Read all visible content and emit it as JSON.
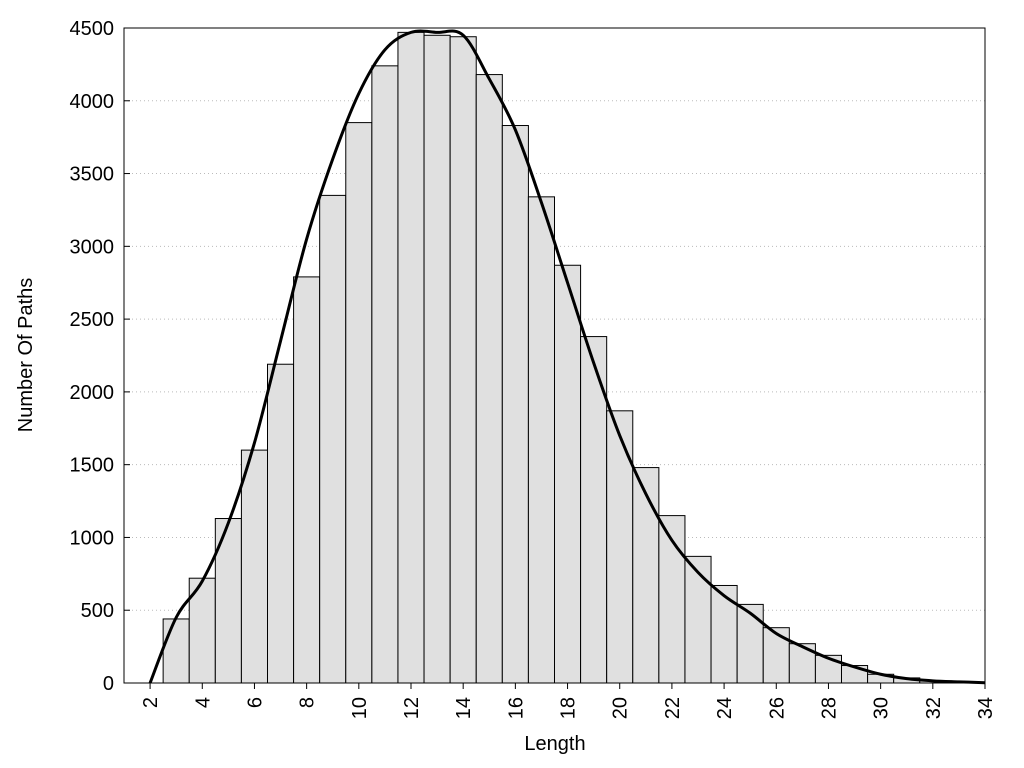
{
  "chart_data": {
    "type": "histogram",
    "x_label": "Length",
    "y_label": "Number Of Paths",
    "bins": [
      2.5,
      3.5,
      4.5,
      5.5,
      6.5,
      7.5,
      8.5,
      9.5,
      10.5,
      11.5,
      12.5,
      13.5,
      14.5,
      15.5,
      16.5,
      17.5,
      18.5,
      19.5,
      20.5,
      21.5,
      22.5,
      23.5,
      24.5,
      25.5,
      26.5,
      27.5,
      28.5,
      29.5,
      30.5,
      31.5,
      32.5,
      33.5
    ],
    "values": [
      440,
      720,
      1130,
      1600,
      2190,
      2790,
      3350,
      3850,
      4240,
      4470,
      4450,
      4440,
      4180,
      3830,
      3340,
      2870,
      2380,
      1870,
      1480,
      1150,
      870,
      670,
      540,
      380,
      270,
      190,
      120,
      60,
      35,
      15,
      7
    ],
    "color": "#e0e0e0",
    "curve": {
      "type": "line",
      "color": "#000000",
      "x": [
        2,
        3,
        4,
        5,
        6,
        7,
        8,
        9,
        10,
        11,
        12,
        13,
        14,
        15,
        16,
        17,
        18,
        19,
        20,
        21,
        22,
        23,
        24,
        25,
        26,
        27,
        28,
        29,
        30,
        31,
        32,
        33,
        34
      ],
      "values": [
        0,
        450,
        700,
        1100,
        1650,
        2350,
        3050,
        3600,
        4050,
        4350,
        4470,
        4470,
        4450,
        4150,
        3800,
        3300,
        2750,
        2200,
        1700,
        1300,
        980,
        760,
        600,
        480,
        340,
        250,
        170,
        110,
        60,
        30,
        15,
        8,
        2
      ]
    },
    "xlim": [
      1,
      34
    ],
    "ylim": [
      0,
      4500
    ],
    "xticks": [
      2,
      4,
      6,
      8,
      10,
      12,
      14,
      16,
      18,
      20,
      22,
      24,
      26,
      28,
      30,
      32,
      34
    ],
    "yticks": [
      0,
      500,
      1000,
      1500,
      2000,
      2500,
      3000,
      3500,
      4000,
      4500
    ],
    "grid": true
  }
}
